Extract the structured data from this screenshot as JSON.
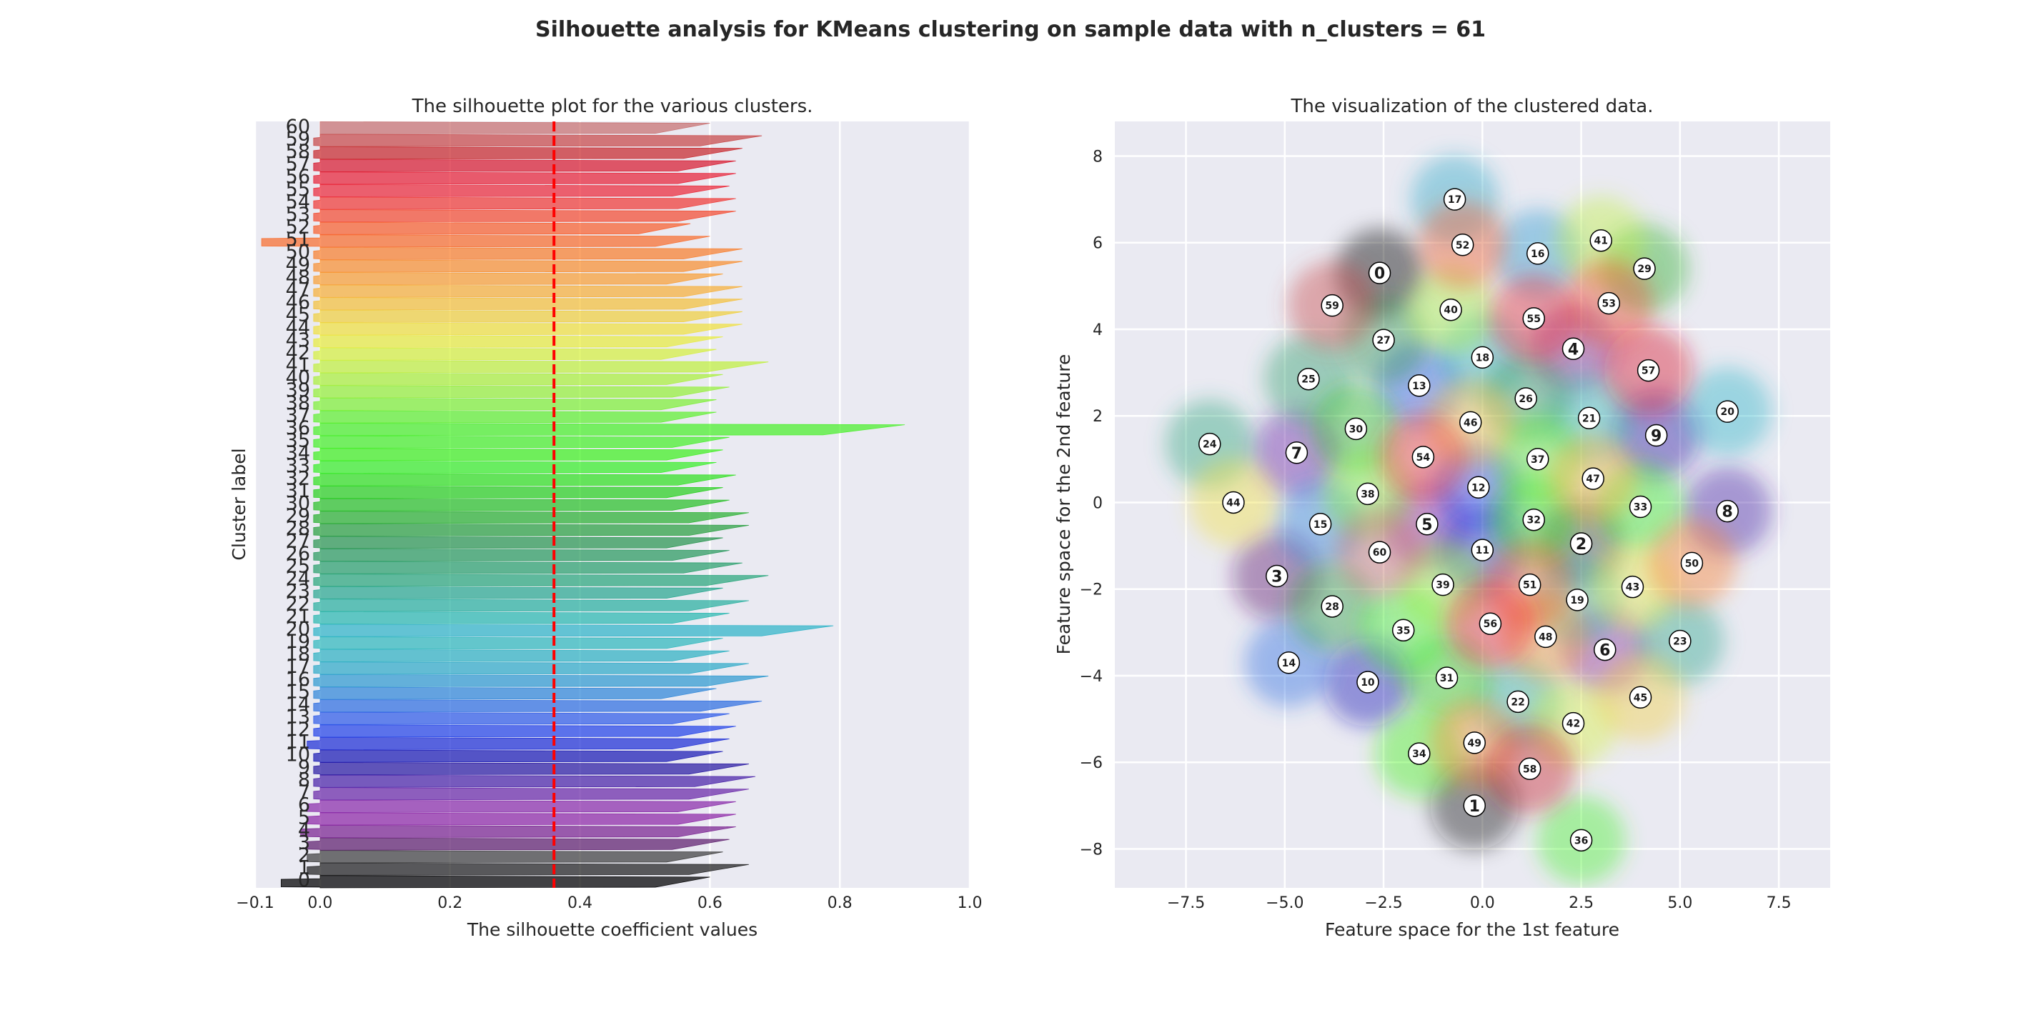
{
  "suptitle": "Silhouette analysis for KMeans clustering on sample data with n_clusters = 61",
  "chart_data": [
    {
      "type": "bar",
      "title": "The silhouette plot for the various clusters.",
      "xlabel": "The silhouette coefficient values",
      "ylabel": "Cluster label",
      "xlim": [
        -0.1,
        1.0
      ],
      "xticks": [
        -0.1,
        0.0,
        0.2,
        0.4,
        0.6,
        0.8,
        1.0
      ],
      "xtick_labels": [
        "−0.1",
        "0.0",
        "0.2",
        "0.4",
        "0.6",
        "0.8",
        "1.0"
      ],
      "grid": true,
      "average_silhouette_score": 0.36,
      "categories": [
        "0",
        "1",
        "2",
        "3",
        "4",
        "5",
        "6",
        "7",
        "8",
        "9",
        "10",
        "11",
        "12",
        "13",
        "14",
        "15",
        "16",
        "17",
        "18",
        "19",
        "20",
        "21",
        "22",
        "23",
        "24",
        "25",
        "26",
        "27",
        "28",
        "29",
        "30",
        "31",
        "32",
        "33",
        "34",
        "35",
        "36",
        "37",
        "38",
        "39",
        "40",
        "41",
        "42",
        "43",
        "44",
        "45",
        "46",
        "47",
        "48",
        "49",
        "50",
        "51",
        "52",
        "53",
        "54",
        "55",
        "56",
        "57",
        "58",
        "59",
        "60"
      ],
      "max_values": [
        0.6,
        0.66,
        0.62,
        0.63,
        0.64,
        0.64,
        0.64,
        0.66,
        0.67,
        0.66,
        0.62,
        0.63,
        0.64,
        0.63,
        0.68,
        0.61,
        0.69,
        0.66,
        0.63,
        0.62,
        0.79,
        0.63,
        0.66,
        0.62,
        0.69,
        0.65,
        0.63,
        0.62,
        0.66,
        0.66,
        0.63,
        0.62,
        0.64,
        0.61,
        0.62,
        0.63,
        0.9,
        0.61,
        0.61,
        0.63,
        0.62,
        0.69,
        0.61,
        0.62,
        0.65,
        0.65,
        0.65,
        0.65,
        0.62,
        0.65,
        0.65,
        0.6,
        0.57,
        0.64,
        0.64,
        0.63,
        0.64,
        0.64,
        0.65,
        0.68,
        0.6
      ],
      "min_values": [
        -0.06,
        -0.02,
        -0.02,
        -0.02,
        -0.03,
        -0.02,
        -0.02,
        -0.01,
        -0.01,
        -0.01,
        -0.01,
        -0.02,
        -0.01,
        -0.01,
        -0.01,
        -0.01,
        -0.01,
        -0.01,
        -0.01,
        -0.01,
        -0.01,
        -0.01,
        -0.01,
        -0.01,
        -0.01,
        -0.01,
        -0.01,
        -0.01,
        -0.01,
        -0.01,
        -0.01,
        -0.01,
        -0.01,
        -0.01,
        -0.01,
        -0.01,
        -0.01,
        -0.01,
        -0.01,
        -0.01,
        -0.01,
        -0.01,
        -0.01,
        -0.01,
        -0.01,
        -0.01,
        -0.01,
        -0.01,
        -0.01,
        -0.01,
        -0.01,
        -0.09,
        -0.01,
        -0.01,
        -0.01,
        -0.01,
        -0.01,
        -0.01,
        -0.01,
        -0.01,
        0.0
      ],
      "colors": [
        "#000000",
        "#202020",
        "#404040",
        "#5e1f6e",
        "#7a2290",
        "#8e27a6",
        "#8a2caa",
        "#6a28a8",
        "#4a22a8",
        "#2a1aa2",
        "#1a1ab4",
        "#1f2fd6",
        "#2444e8",
        "#2f5ce8",
        "#2f6fe0",
        "#2f86d8",
        "#2f9ad0",
        "#2faac8",
        "#2fb2c2",
        "#2fb8bc",
        "#2fb4c8",
        "#2ab8b0",
        "#2ab0a0",
        "#2aa890",
        "#2aa67c",
        "#2aa06c",
        "#2a9a5e",
        "#2a9650",
        "#2aa040",
        "#2ab030",
        "#2ac028",
        "#2ad020",
        "#30e020",
        "#38ee28",
        "#40f020",
        "#46f02a",
        "#4af02a",
        "#60f030",
        "#80f038",
        "#96f03a",
        "#aaf03c",
        "#c0f040",
        "#d6f040",
        "#e8ec40",
        "#f0e040",
        "#f0d040",
        "#f4c03c",
        "#f6b03a",
        "#f8a036",
        "#f89032",
        "#f8802e",
        "#f86e2e",
        "#f8602e",
        "#f44c32",
        "#f03a36",
        "#ec2a3a",
        "#e82238",
        "#d81c30",
        "#c8282c",
        "#c84848",
        "#c87070"
      ]
    },
    {
      "type": "scatter",
      "title": "The visualization of the clustered data.",
      "xlabel": "Feature space for the 1st feature",
      "ylabel": "Feature space for the 2nd feature",
      "xlim": [
        -9.3,
        8.8
      ],
      "ylim": [
        -8.9,
        8.8
      ],
      "xticks": [
        -7.5,
        -5.0,
        -2.5,
        0.0,
        2.5,
        5.0,
        7.5
      ],
      "xtick_labels": [
        "−7.5",
        "−5.0",
        "−2.5",
        "0.0",
        "2.5",
        "5.0",
        "7.5"
      ],
      "yticks": [
        -8,
        -6,
        -4,
        -2,
        0,
        2,
        4,
        6,
        8
      ],
      "ytick_labels": [
        "−8",
        "−6",
        "−4",
        "−2",
        "0",
        "2",
        "4",
        "6",
        "8"
      ],
      "grid": true,
      "centers": [
        {
          "label": "0",
          "x": -2.6,
          "y": 5.3
        },
        {
          "label": "1",
          "x": -0.2,
          "y": -7.0
        },
        {
          "label": "2",
          "x": 2.5,
          "y": -0.95
        },
        {
          "label": "3",
          "x": -5.2,
          "y": -1.7
        },
        {
          "label": "4",
          "x": 2.3,
          "y": 3.55
        },
        {
          "label": "5",
          "x": -1.4,
          "y": -0.5
        },
        {
          "label": "6",
          "x": 3.1,
          "y": -3.4
        },
        {
          "label": "7",
          "x": -4.7,
          "y": 1.15
        },
        {
          "label": "8",
          "x": 6.2,
          "y": -0.2
        },
        {
          "label": "9",
          "x": 4.4,
          "y": 1.55
        },
        {
          "label": "10",
          "x": -2.9,
          "y": -4.15
        },
        {
          "label": "11",
          "x": 0.0,
          "y": -1.1
        },
        {
          "label": "12",
          "x": -0.1,
          "y": 0.35
        },
        {
          "label": "13",
          "x": -1.6,
          "y": 2.7
        },
        {
          "label": "14",
          "x": -4.9,
          "y": -3.7
        },
        {
          "label": "15",
          "x": -4.1,
          "y": -0.5
        },
        {
          "label": "16",
          "x": 1.4,
          "y": 5.75
        },
        {
          "label": "17",
          "x": -0.7,
          "y": 7.0
        },
        {
          "label": "18",
          "x": 0.0,
          "y": 3.35
        },
        {
          "label": "19",
          "x": 2.4,
          "y": -2.25
        },
        {
          "label": "20",
          "x": 6.2,
          "y": 2.1
        },
        {
          "label": "21",
          "x": 2.7,
          "y": 1.95
        },
        {
          "label": "22",
          "x": 0.9,
          "y": -4.6
        },
        {
          "label": "23",
          "x": 5.0,
          "y": -3.2
        },
        {
          "label": "24",
          "x": -6.9,
          "y": 1.35
        },
        {
          "label": "25",
          "x": -4.4,
          "y": 2.85
        },
        {
          "label": "26",
          "x": 1.1,
          "y": 2.4
        },
        {
          "label": "27",
          "x": -2.5,
          "y": 3.75
        },
        {
          "label": "28",
          "x": -3.8,
          "y": -2.4
        },
        {
          "label": "29",
          "x": 4.1,
          "y": 5.4
        },
        {
          "label": "30",
          "x": -3.2,
          "y": 1.7
        },
        {
          "label": "31",
          "x": -0.9,
          "y": -4.05
        },
        {
          "label": "32",
          "x": 1.3,
          "y": -0.4
        },
        {
          "label": "33",
          "x": 4.0,
          "y": -0.1
        },
        {
          "label": "34",
          "x": -1.6,
          "y": -5.8
        },
        {
          "label": "35",
          "x": -2.0,
          "y": -2.95
        },
        {
          "label": "36",
          "x": 2.5,
          "y": -7.8
        },
        {
          "label": "37",
          "x": 1.4,
          "y": 1.0
        },
        {
          "label": "38",
          "x": -2.9,
          "y": 0.2
        },
        {
          "label": "39",
          "x": -1.0,
          "y": -1.9
        },
        {
          "label": "40",
          "x": -0.8,
          "y": 4.45
        },
        {
          "label": "41",
          "x": 3.0,
          "y": 6.05
        },
        {
          "label": "42",
          "x": 2.3,
          "y": -5.1
        },
        {
          "label": "43",
          "x": 3.8,
          "y": -1.95
        },
        {
          "label": "44",
          "x": -6.3,
          "y": 0.0
        },
        {
          "label": "45",
          "x": 4.0,
          "y": -4.5
        },
        {
          "label": "46",
          "x": -0.3,
          "y": 1.85
        },
        {
          "label": "47",
          "x": 2.8,
          "y": 0.55
        },
        {
          "label": "48",
          "x": 1.6,
          "y": -3.1
        },
        {
          "label": "49",
          "x": -0.2,
          "y": -5.55
        },
        {
          "label": "50",
          "x": 5.3,
          "y": -1.4
        },
        {
          "label": "51",
          "x": 1.2,
          "y": -1.9
        },
        {
          "label": "52",
          "x": -0.5,
          "y": 5.95
        },
        {
          "label": "53",
          "x": 3.2,
          "y": 4.6
        },
        {
          "label": "54",
          "x": -1.5,
          "y": 1.05
        },
        {
          "label": "55",
          "x": 1.3,
          "y": 4.25
        },
        {
          "label": "56",
          "x": 0.2,
          "y": -2.8
        },
        {
          "label": "57",
          "x": 4.2,
          "y": 3.05
        },
        {
          "label": "58",
          "x": 1.2,
          "y": -6.15
        },
        {
          "label": "59",
          "x": -3.8,
          "y": 4.55
        },
        {
          "label": "60",
          "x": -2.6,
          "y": -1.15
        }
      ]
    }
  ]
}
